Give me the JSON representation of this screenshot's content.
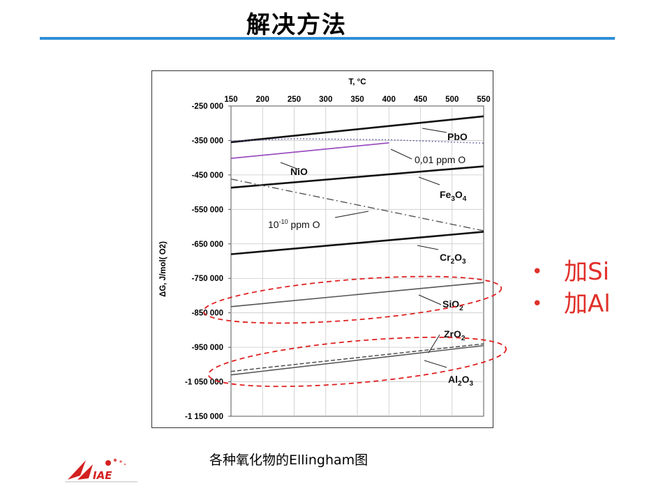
{
  "slide": {
    "title": "解决方法",
    "caption": "各种氧化物的Ellingham图"
  },
  "bullets": [
    {
      "symbol": "•",
      "text": "加Si"
    },
    {
      "symbol": "•",
      "text": "加Al"
    }
  ],
  "logo": {
    "icon": "iae-logo-icon",
    "text": "IAE"
  },
  "colors": {
    "accent_rule": "#2e8fd8",
    "bullet_red": "#e0302a",
    "highlight_ellipse": "#e02020",
    "nio_line": "#9a4fc0"
  },
  "chart_data": {
    "type": "line",
    "xlabel": "T, °C",
    "ylabel": "ΔG, J/mol( O2)",
    "xlim": [
      150,
      550
    ],
    "ylim": [
      -1150000,
      -250000
    ],
    "x_ticks": [
      150,
      200,
      250,
      300,
      350,
      400,
      450,
      500,
      550
    ],
    "x_tick_labels": [
      "150",
      "200",
      "250",
      "300",
      "350",
      "400",
      "450",
      "500",
      "550"
    ],
    "y_ticks": [
      -250000,
      -350000,
      -450000,
      -550000,
      -650000,
      -750000,
      -850000,
      -950000,
      -1050000,
      -1150000
    ],
    "y_tick_labels": [
      "-250 000",
      "-350 000",
      "-450 000",
      "-550 000",
      "-650 000",
      "-750 000",
      "-850 000",
      "-950 000",
      "-1 050 000",
      "-1 150 000"
    ],
    "x_axis_position": "top",
    "grid": true,
    "series": [
      {
        "name": "PbO",
        "style": "thick",
        "x": [
          150,
          550
        ],
        "y": [
          -355000,
          -280000
        ]
      },
      {
        "name": "NiO",
        "style": "purple",
        "x": [
          150,
          400
        ],
        "y": [
          -402000,
          -357000
        ]
      },
      {
        "name": "0,01 ppm O",
        "style": "dotted",
        "x": [
          150,
          250,
          400,
          550
        ],
        "y": [
          -352000,
          -345000,
          -348000,
          -358000
        ]
      },
      {
        "name": "Fe3O4",
        "style": "thick",
        "x": [
          150,
          550
        ],
        "y": [
          -487000,
          -425000
        ]
      },
      {
        "name": "10-10 ppm O",
        "style": "dashdot",
        "x": [
          150,
          550
        ],
        "y": [
          -462000,
          -612000
        ]
      },
      {
        "name": "Cr2O3",
        "style": "thick",
        "x": [
          150,
          550
        ],
        "y": [
          -680000,
          -615000
        ]
      },
      {
        "name": "SiO2",
        "style": "thin",
        "x": [
          150,
          550
        ],
        "y": [
          -832000,
          -762000
        ]
      },
      {
        "name": "ZrO2",
        "style": "dashed",
        "x": [
          150,
          550
        ],
        "y": [
          -1020000,
          -940000
        ]
      },
      {
        "name": "Al2O3",
        "style": "thin",
        "x": [
          150,
          550
        ],
        "y": [
          -1030000,
          -945000
        ]
      }
    ],
    "labels": [
      {
        "text": "PbO"
      },
      {
        "text": "0,01 ppm O"
      },
      {
        "text": "NiO"
      },
      {
        "text": "Fe",
        "sub": "3",
        "text2": "O",
        "sub2": "4"
      },
      {
        "text": "10",
        "sup": "-10",
        "text2": " ppm O"
      },
      {
        "text": "Cr",
        "sub": "2",
        "text2": "O",
        "sub2": "3"
      },
      {
        "text": "SiO",
        "sub": "2"
      },
      {
        "text": "ZrO",
        "sub": "2"
      },
      {
        "text": "Al",
        "sub": "2",
        "text2": "O",
        "sub2": "3"
      }
    ]
  }
}
